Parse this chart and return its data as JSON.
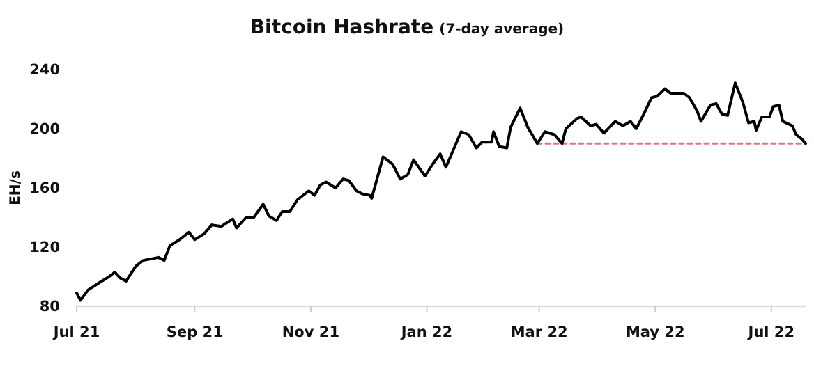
{
  "chart_data": {
    "type": "line",
    "title": "Bitcoin Hashrate",
    "subtitle": "(7-day average)",
    "ylabel": "EH/s",
    "x": [
      "2021-07-01",
      "2021-07-03",
      "2021-07-07",
      "2021-07-13",
      "2021-07-18",
      "2021-07-21",
      "2021-07-24",
      "2021-07-27",
      "2021-08-01",
      "2021-08-05",
      "2021-08-13",
      "2021-08-16",
      "2021-08-19",
      "2021-08-24",
      "2021-08-29",
      "2021-09-01",
      "2021-09-06",
      "2021-09-10",
      "2021-09-15",
      "2021-09-21",
      "2021-09-23",
      "2021-09-28",
      "2021-10-02",
      "2021-10-07",
      "2021-10-10",
      "2021-10-14",
      "2021-10-17",
      "2021-10-21",
      "2021-10-25",
      "2021-10-31",
      "2021-11-03",
      "2021-11-06",
      "2021-11-09",
      "2021-11-14",
      "2021-11-18",
      "2021-11-21",
      "2021-11-25",
      "2021-11-28",
      "2021-12-02",
      "2021-12-03",
      "2021-12-09",
      "2021-12-14",
      "2021-12-18",
      "2021-12-22",
      "2021-12-25",
      "2021-12-31",
      "2022-01-04",
      "2022-01-08",
      "2022-01-11",
      "2022-01-19",
      "2022-01-23",
      "2022-01-27",
      "2022-01-30",
      "2022-02-04",
      "2022-02-05",
      "2022-02-08",
      "2022-02-12",
      "2022-02-14",
      "2022-02-19",
      "2022-02-23",
      "2022-02-28",
      "2022-03-04",
      "2022-03-09",
      "2022-03-13",
      "2022-03-15",
      "2022-03-21",
      "2022-03-23",
      "2022-03-28",
      "2022-03-31",
      "2022-04-04",
      "2022-04-10",
      "2022-04-14",
      "2022-04-18",
      "2022-04-21",
      "2022-04-25",
      "2022-04-29",
      "2022-05-02",
      "2022-05-06",
      "2022-05-09",
      "2022-05-16",
      "2022-05-19",
      "2022-05-23",
      "2022-05-25",
      "2022-05-30",
      "2022-06-02",
      "2022-06-05",
      "2022-06-08",
      "2022-06-12",
      "2022-06-16",
      "2022-06-19",
      "2022-06-22",
      "2022-06-23",
      "2022-06-26",
      "2022-06-30",
      "2022-07-02",
      "2022-07-05",
      "2022-07-07",
      "2022-07-12",
      "2022-07-14",
      "2022-07-17",
      "2022-07-19"
    ],
    "series": [
      {
        "color": "#000000",
        "line_style": "solid",
        "values": [
          89,
          84,
          91,
          96,
          100,
          103,
          99,
          97,
          107,
          111,
          113,
          111,
          121,
          125,
          130,
          125,
          129,
          135,
          134,
          139,
          133,
          140,
          140,
          149,
          141,
          138,
          144,
          144,
          152,
          158,
          155,
          162,
          164,
          160,
          166,
          165,
          158,
          156,
          155,
          153,
          181,
          176,
          166,
          169,
          179,
          168,
          176,
          183,
          174,
          198,
          196,
          187,
          191,
          191,
          198,
          188,
          187,
          201,
          214,
          201,
          190,
          198,
          196,
          190,
          200,
          207,
          208,
          202,
          203,
          197,
          205,
          202,
          205,
          200,
          210,
          221,
          222,
          227,
          224,
          224,
          221,
          212,
          205,
          216,
          217,
          210,
          209,
          231,
          218,
          204,
          205,
          199,
          208,
          208,
          215,
          216,
          205,
          202,
          196,
          193,
          190
        ]
      },
      {
        "color": "#e57373",
        "line_style": "dashed",
        "x": [
          "2022-02-28",
          "2022-07-19"
        ],
        "values": [
          190,
          190
        ]
      }
    ],
    "xlim": [
      "2021-07-01",
      "2022-07-19"
    ],
    "xticks": [
      {
        "value": "2021-07-01",
        "label": "Jul 21"
      },
      {
        "value": "2021-09-01",
        "label": "Sep 21"
      },
      {
        "value": "2021-11-01",
        "label": "Nov 21"
      },
      {
        "value": "2022-01-01",
        "label": "Jan 22"
      },
      {
        "value": "2022-03-01",
        "label": "Mar 22"
      },
      {
        "value": "2022-05-01",
        "label": "May 22"
      },
      {
        "value": "2022-07-01",
        "label": "Jul 22"
      }
    ],
    "ylim": [
      80,
      240
    ],
    "yticks": [
      80,
      120,
      160,
      200,
      240
    ]
  }
}
